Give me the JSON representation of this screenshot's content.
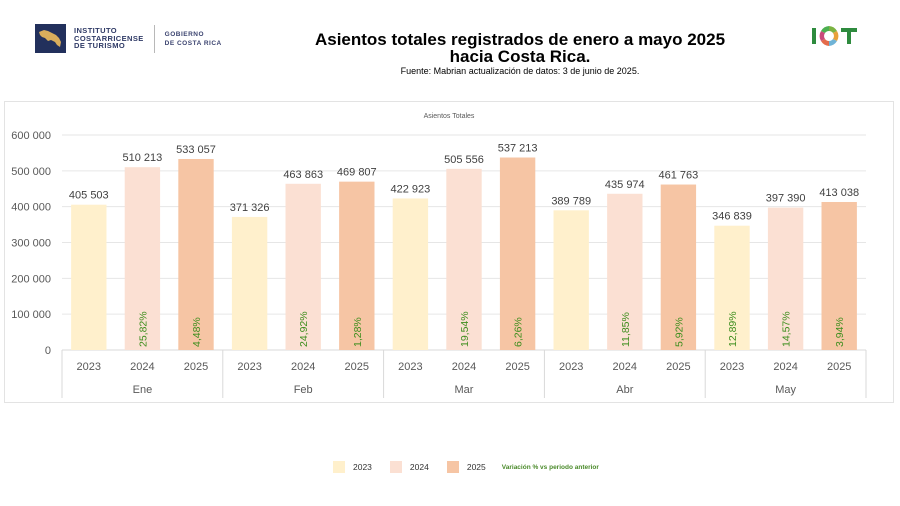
{
  "header": {
    "org_name_lines": [
      "INSTITUTO",
      "COSTARRICENSE",
      "DE TURISMO"
    ],
    "gov_lines": [
      "GOBIERNO",
      "DE COSTA RICA"
    ],
    "right_logo_text": "ICT",
    "title_line1": "Asientos totales registrados de enero a mayo 2025",
    "title_line2": "hacia Costa Rica.",
    "source": "Fuente: Mabrian actualización de datos: 3 de junio de 2025."
  },
  "colors": {
    "2023": "#fff0cc",
    "2024": "#fbe0d3",
    "2025": "#f6c5a4",
    "variation_text": "#3e8e1e",
    "gridline": "#e6e6e6"
  },
  "legend": {
    "items": [
      "2023",
      "2024",
      "2025"
    ],
    "note": "Variación % vs periodo anterior"
  },
  "chart_data": {
    "type": "bar",
    "title": "Asientos Totales",
    "xlabel": "",
    "ylabel": "",
    "ylim": [
      0,
      600000
    ],
    "yticks": [
      0,
      100000,
      200000,
      300000,
      400000,
      500000,
      600000
    ],
    "ytick_labels": [
      "0",
      "100 000",
      "200 000",
      "300 000",
      "400 000",
      "500 000",
      "600 000"
    ],
    "grid": true,
    "legend_position": "bottom",
    "categories": [
      "Ene",
      "Feb",
      "Mar",
      "Abr",
      "May"
    ],
    "series": [
      {
        "name": "2023",
        "values": [
          405503,
          371326,
          422923,
          389789,
          346839
        ],
        "labels": [
          "405 503",
          "371 326",
          "422 923",
          "389 789",
          "346 839"
        ],
        "variation": [
          "",
          "",
          "",
          "",
          "12,89%"
        ]
      },
      {
        "name": "2024",
        "values": [
          510213,
          463863,
          505556,
          435974,
          397390
        ],
        "labels": [
          "510 213",
          "463 863",
          "505 556",
          "435 974",
          "397 390"
        ],
        "variation": [
          "25,82%",
          "24,92%",
          "19,54%",
          "11,85%",
          "14,57%"
        ]
      },
      {
        "name": "2025",
        "values": [
          533057,
          469807,
          537213,
          461763,
          413038
        ],
        "labels": [
          "533 057",
          "469 807",
          "537 213",
          "461 763",
          "413 038"
        ],
        "variation": [
          "4,48%",
          "1,28%",
          "6,26%",
          "5,92%",
          "3,94%"
        ]
      }
    ]
  }
}
